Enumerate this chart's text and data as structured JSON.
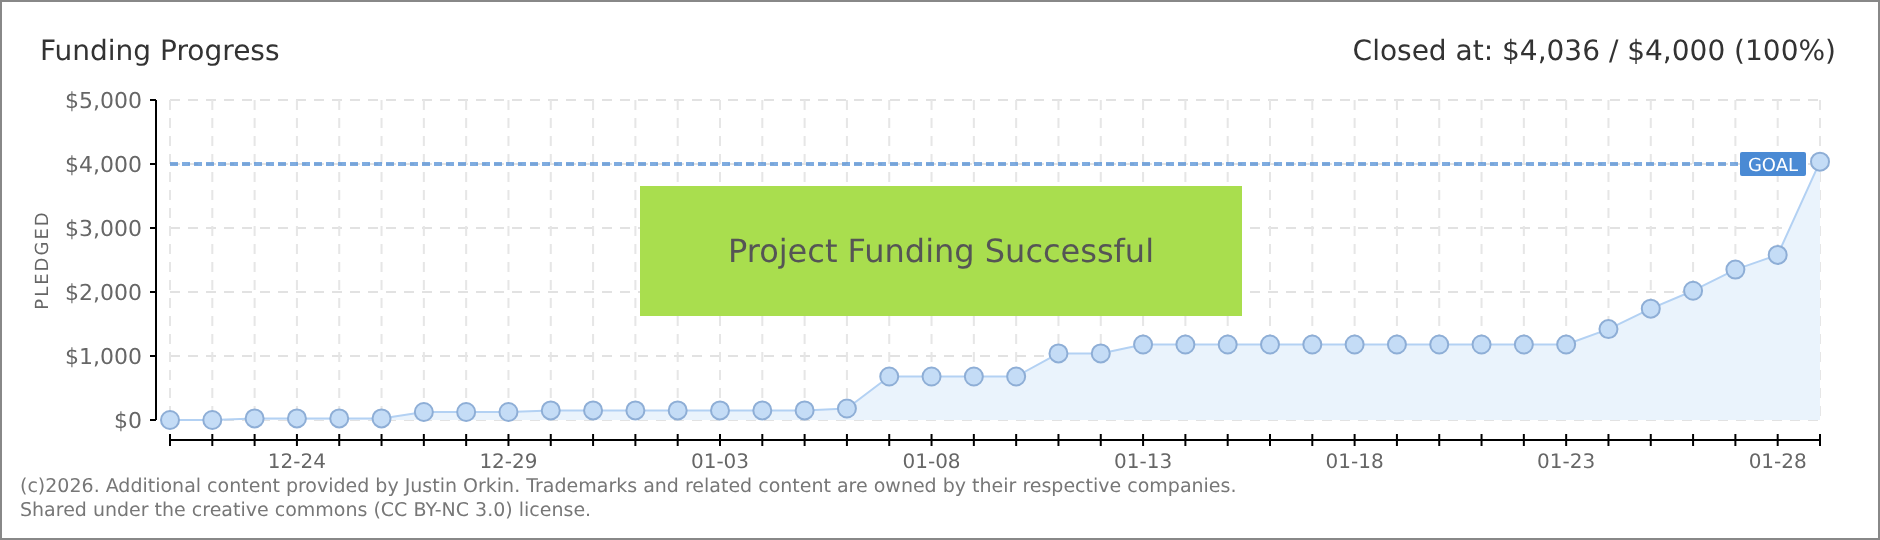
{
  "chart_data": {
    "type": "area",
    "title": "Funding Progress",
    "subtitle": "Closed at: $4,036 / $4,000 (100%)",
    "ylabel": "PLEDGED",
    "x": [
      "2025-12-21",
      "2025-12-22",
      "2025-12-23",
      "2025-12-24",
      "2025-12-25",
      "2025-12-26",
      "2025-12-27",
      "2025-12-28",
      "2025-12-29",
      "2025-12-30",
      "2025-12-31",
      "2026-01-01",
      "2026-01-02",
      "2026-01-03",
      "2026-01-04",
      "2026-01-05",
      "2026-01-06",
      "2026-01-07",
      "2026-01-08",
      "2026-01-09",
      "2026-01-10",
      "2026-01-11",
      "2026-01-12",
      "2026-01-13",
      "2026-01-14",
      "2026-01-15",
      "2026-01-16",
      "2026-01-17",
      "2026-01-18",
      "2026-01-19",
      "2026-01-20",
      "2026-01-21",
      "2026-01-22",
      "2026-01-23",
      "2026-01-24",
      "2026-01-25",
      "2026-01-26",
      "2026-01-27",
      "2026-01-28",
      "2026-01-29"
    ],
    "series": [
      {
        "color": "#b3d1f3",
        "values": [
          0,
          0,
          25,
          25,
          25,
          25,
          125,
          125,
          125,
          150,
          150,
          150,
          150,
          150,
          150,
          150,
          180,
          680,
          680,
          680,
          680,
          1040,
          1040,
          1180,
          1180,
          1180,
          1180,
          1180,
          1180,
          1180,
          1180,
          1180,
          1180,
          1180,
          1420,
          1740,
          2020,
          2350,
          2580,
          4036
        ]
      }
    ],
    "marker": "circle",
    "line_style": "solid",
    "grid": true,
    "xlim": [
      "2025-12-21",
      "2026-01-29"
    ],
    "xticks": [
      {
        "value": "2025-12-21",
        "label": null
      },
      {
        "value": "2025-12-22",
        "label": null
      },
      {
        "value": "2025-12-23",
        "label": null
      },
      {
        "value": "2025-12-24",
        "label": "12-24"
      },
      {
        "value": "2025-12-25",
        "label": null
      },
      {
        "value": "2025-12-26",
        "label": null
      },
      {
        "value": "2025-12-27",
        "label": null
      },
      {
        "value": "2025-12-28",
        "label": null
      },
      {
        "value": "2025-12-29",
        "label": "12-29"
      },
      {
        "value": "2025-12-30",
        "label": null
      },
      {
        "value": "2025-12-31",
        "label": null
      },
      {
        "value": "2026-01-01",
        "label": null
      },
      {
        "value": "2026-01-02",
        "label": null
      },
      {
        "value": "2026-01-03",
        "label": "01-03"
      },
      {
        "value": "2026-01-04",
        "label": null
      },
      {
        "value": "2026-01-05",
        "label": null
      },
      {
        "value": "2026-01-06",
        "label": null
      },
      {
        "value": "2026-01-07",
        "label": null
      },
      {
        "value": "2026-01-08",
        "label": "01-08"
      },
      {
        "value": "2026-01-09",
        "label": null
      },
      {
        "value": "2026-01-10",
        "label": null
      },
      {
        "value": "2026-01-11",
        "label": null
      },
      {
        "value": "2026-01-12",
        "label": null
      },
      {
        "value": "2026-01-13",
        "label": "01-13"
      },
      {
        "value": "2026-01-14",
        "label": null
      },
      {
        "value": "2026-01-15",
        "label": null
      },
      {
        "value": "2026-01-16",
        "label": null
      },
      {
        "value": "2026-01-17",
        "label": null
      },
      {
        "value": "2026-01-18",
        "label": "01-18"
      },
      {
        "value": "2026-01-19",
        "label": null
      },
      {
        "value": "2026-01-20",
        "label": null
      },
      {
        "value": "2026-01-21",
        "label": null
      },
      {
        "value": "2026-01-22",
        "label": null
      },
      {
        "value": "2026-01-23",
        "label": "01-23"
      },
      {
        "value": "2026-01-24",
        "label": null
      },
      {
        "value": "2026-01-25",
        "label": null
      },
      {
        "value": "2026-01-26",
        "label": null
      },
      {
        "value": "2026-01-27",
        "label": null
      },
      {
        "value": "2026-01-28",
        "label": "01-28"
      },
      {
        "value": "2026-01-29",
        "label": null
      }
    ],
    "ylim": [
      0,
      5000
    ],
    "yticks": [
      {
        "value": 0,
        "label": "$0"
      },
      {
        "value": 1000,
        "label": "$1,000"
      },
      {
        "value": 2000,
        "label": "$2,000"
      },
      {
        "value": 3000,
        "label": "$3,000"
      },
      {
        "value": 4000,
        "label": "$4,000"
      },
      {
        "value": 5000,
        "label": "$5,000"
      }
    ],
    "ref_lines": [
      {
        "axis": "y",
        "value": 4000,
        "label": "GOAL",
        "color": "#4a8ad4",
        "line_style": "dashed"
      }
    ],
    "annotations": [
      "Project Funding Successful",
      "(c)2026. Additional content provided by Justin Orkin. Trademarks and related content are owned by their respective companies.",
      "Shared under the creative commons (CC BY-NC 3.0) license."
    ]
  }
}
